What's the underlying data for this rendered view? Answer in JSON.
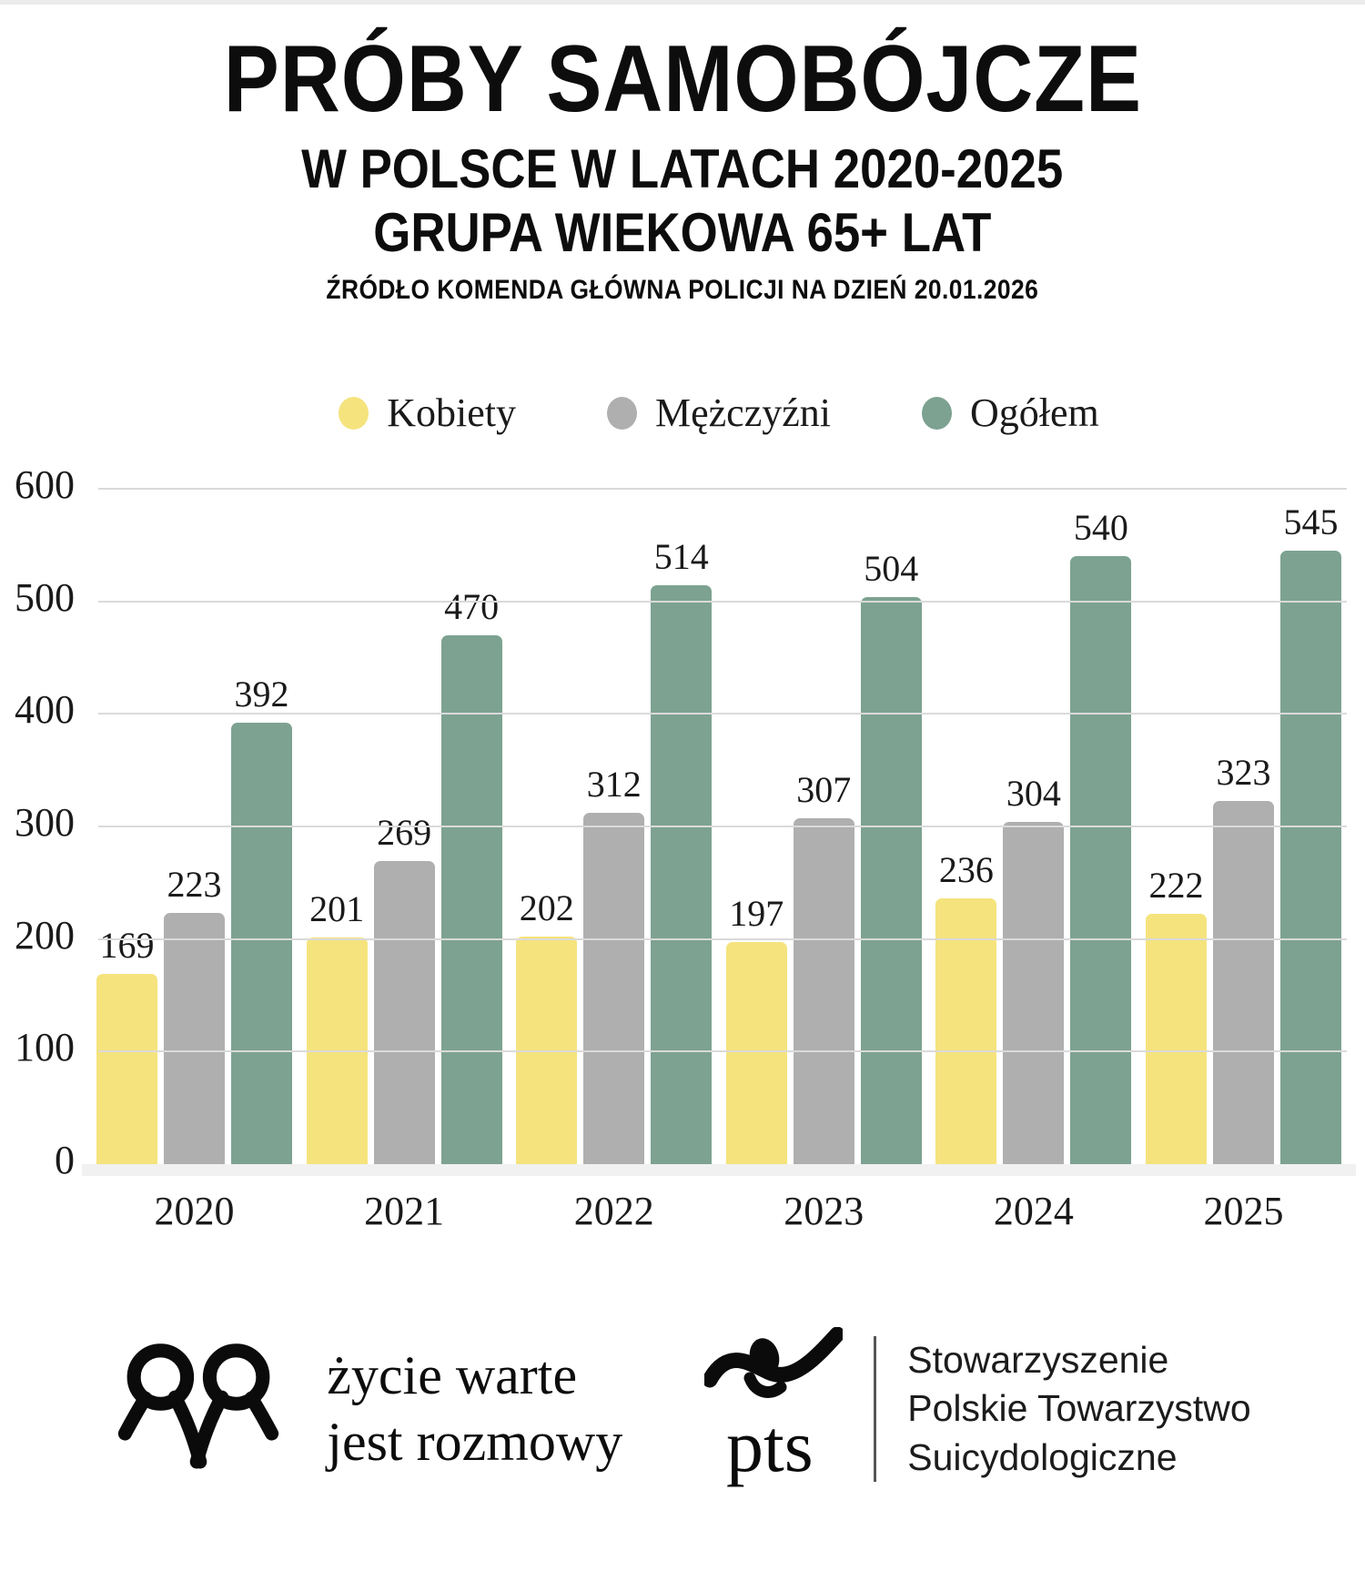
{
  "header": {
    "title": "PRÓBY SAMOBÓJCZE",
    "subtitle1": "W POLSCE W LATACH 2020-2025",
    "subtitle2": "GRUPA WIEKOWA 65+ LAT",
    "source": "ŹRÓDŁO KOMENDA GŁÓWNA POLICJI NA DZIEŃ 20.01.2026"
  },
  "chart_data": {
    "type": "bar",
    "title": "Próby samobójcze w Polsce w latach 2020-2025, grupa wiekowa 65+ lat",
    "categories": [
      "2020",
      "2021",
      "2022",
      "2023",
      "2024",
      "2025"
    ],
    "series": [
      {
        "name": "Kobiety",
        "color": "#F5E37D",
        "values": [
          169,
          201,
          202,
          197,
          236,
          222
        ]
      },
      {
        "name": "Mężczyźni",
        "color": "#AFAFAF",
        "values": [
          223,
          269,
          312,
          307,
          304,
          323
        ]
      },
      {
        "name": "Ogółem",
        "color": "#7DA291",
        "values": [
          392,
          470,
          514,
          504,
          540,
          545
        ]
      }
    ],
    "xlabel": "",
    "ylabel": "",
    "ylim": [
      0,
      600
    ],
    "yticks": [
      0,
      100,
      200,
      300,
      400,
      500,
      600
    ],
    "grid": true,
    "legend_position": "top",
    "gridline_color": "#dadada",
    "value_labels": true
  },
  "footer": {
    "left_logo": {
      "icon": "heart-ribbon-icon",
      "line1": "życie warte",
      "line2": "jest rozmowy"
    },
    "right_logo": {
      "icon": "pts-figure-icon",
      "abbr": "pts",
      "line1": "Stowarzyszenie",
      "line2": "Polskie Towarzystwo",
      "line3": "Suicydologiczne"
    }
  }
}
